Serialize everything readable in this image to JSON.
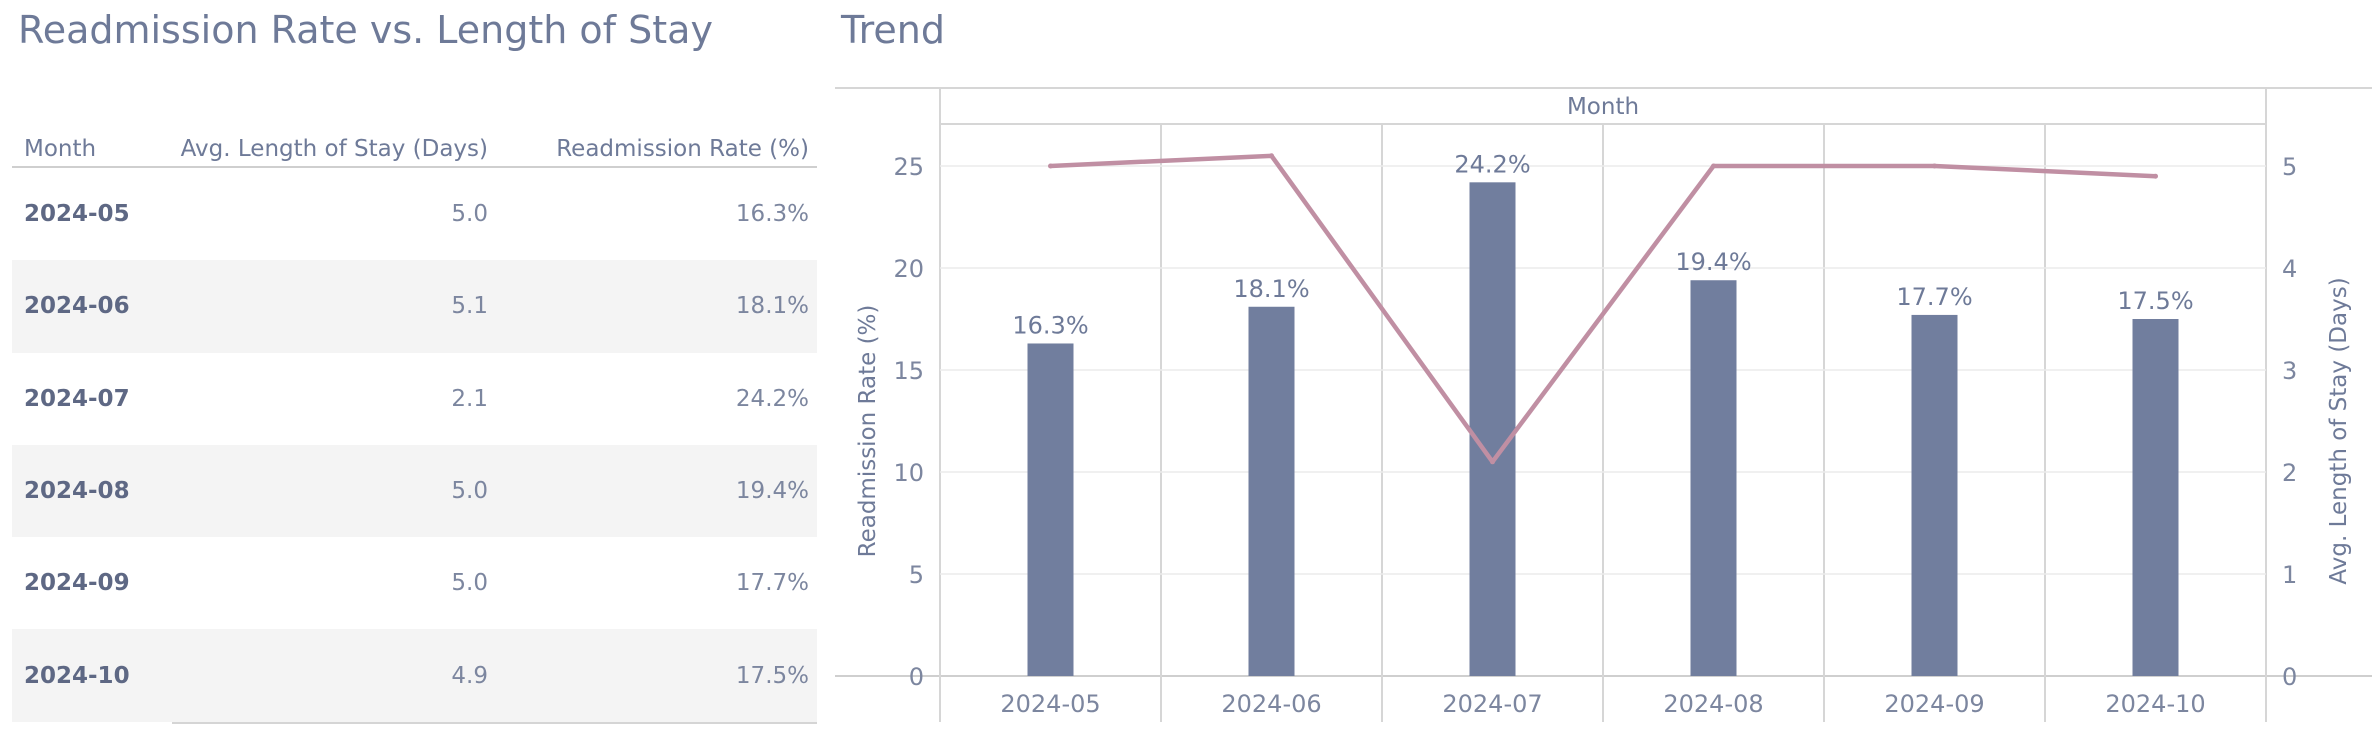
{
  "left_title": "Readmission Rate vs. Length of Stay",
  "right_title": "Trend",
  "table": {
    "headers": [
      "Month",
      "Avg. Length of Stay (Days)",
      "Readmission Rate (%)"
    ],
    "rows": [
      {
        "month": "2024-05",
        "los": "5.0",
        "rate": "16.3%"
      },
      {
        "month": "2024-06",
        "los": "5.1",
        "rate": "18.1%"
      },
      {
        "month": "2024-07",
        "los": "2.1",
        "rate": "24.2%"
      },
      {
        "month": "2024-08",
        "los": "5.0",
        "rate": "19.4%"
      },
      {
        "month": "2024-09",
        "los": "5.0",
        "rate": "17.7%"
      },
      {
        "month": "2024-10",
        "los": "4.9",
        "rate": "17.5%"
      }
    ]
  },
  "chart_data": {
    "type": "bar",
    "title": "Trend",
    "header_label": "Month",
    "categories": [
      "2024-05",
      "2024-06",
      "2024-07",
      "2024-08",
      "2024-09",
      "2024-10"
    ],
    "series": [
      {
        "type": "bar",
        "axis": "left",
        "values": [
          16.3,
          18.1,
          24.2,
          19.4,
          17.7,
          17.5
        ],
        "labels": [
          "16.3%",
          "18.1%",
          "24.2%",
          "19.4%",
          "17.7%",
          "17.5%"
        ],
        "color": "#717e9e"
      },
      {
        "type": "line",
        "axis": "right",
        "values": [
          5.0,
          5.1,
          2.1,
          5.0,
          5.0,
          4.9
        ],
        "color": "#c08fa3"
      }
    ],
    "ylabel_left": "Readmission Rate (%)",
    "ylabel_right": "Avg. Length of Stay (Days)",
    "ylim_left": [
      0,
      25
    ],
    "ylim_right": [
      0,
      5
    ],
    "yticks_left": [
      0,
      5,
      10,
      15,
      20,
      25
    ],
    "yticks_right": [
      0,
      1,
      2,
      3,
      4,
      5
    ],
    "grid": true
  }
}
